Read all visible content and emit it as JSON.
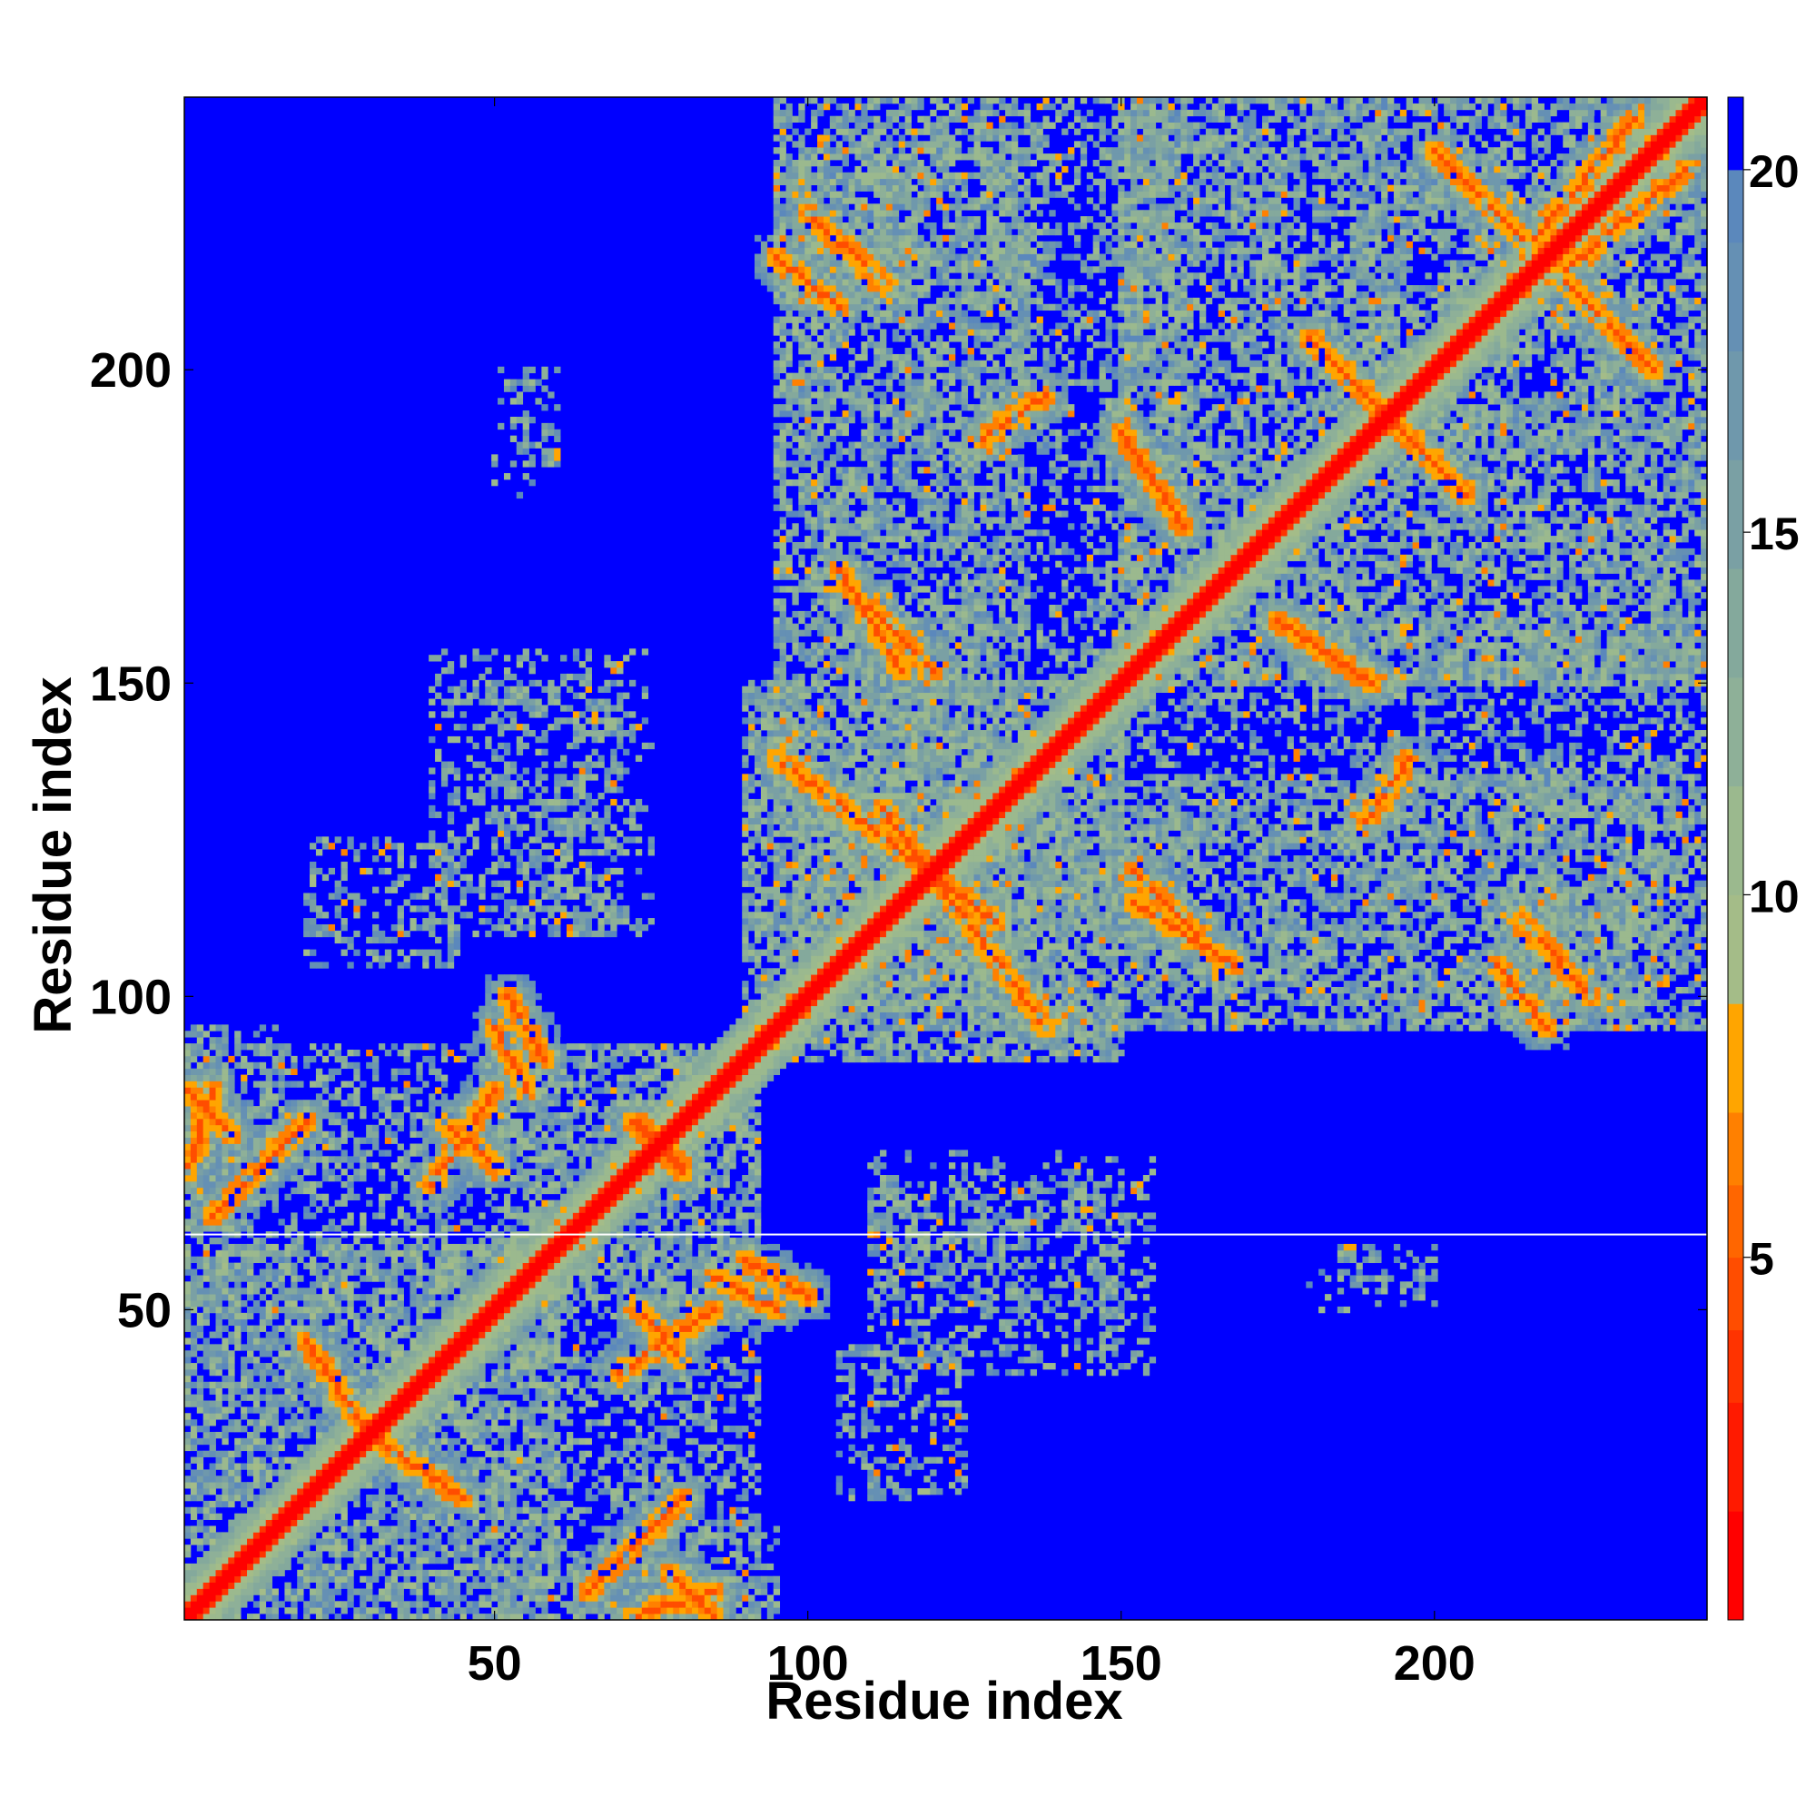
{
  "chart_data": {
    "type": "heatmap",
    "title": "",
    "xlabel": "Residue index",
    "ylabel": "Residue index",
    "n_residues": 243,
    "xlim": [
      0.5,
      243.5
    ],
    "ylim": [
      0.5,
      243.5
    ],
    "xticks": [
      50,
      100,
      150,
      200
    ],
    "yticks": [
      50,
      100,
      150,
      200
    ],
    "xtick_labels": [
      "50",
      "100",
      "150",
      "200"
    ],
    "ytick_labels": [
      "50",
      "100",
      "150",
      "200"
    ],
    "missing_row": 62,
    "colorbar": {
      "range": [
        0,
        21
      ],
      "ticks": [
        5,
        10,
        15,
        20
      ],
      "tick_labels": [
        "5",
        "10",
        "15",
        "20"
      ],
      "levels": [
        {
          "max": 1.5,
          "color": "#ff0000"
        },
        {
          "max": 3.0,
          "color": "#ff1a00"
        },
        {
          "max": 4.0,
          "color": "#ff3300"
        },
        {
          "max": 5.0,
          "color": "#ff4d00"
        },
        {
          "max": 6.0,
          "color": "#ff6600"
        },
        {
          "max": 7.0,
          "color": "#ff8000"
        },
        {
          "max": 8.5,
          "color": "#ffa500"
        },
        {
          "max": 10.0,
          "color": "#a4bc88"
        },
        {
          "max": 11.5,
          "color": "#9bb98e"
        },
        {
          "max": 13.0,
          "color": "#8eb098"
        },
        {
          "max": 14.5,
          "color": "#84a99c"
        },
        {
          "max": 16.0,
          "color": "#7aa0a4"
        },
        {
          "max": 17.5,
          "color": "#6f98ac"
        },
        {
          "max": 19.0,
          "color": "#6590b4"
        },
        {
          "max": 20.0,
          "color": "#5b88bc"
        },
        {
          "max": 21.0,
          "color": "#0000ff"
        }
      ]
    },
    "contact_regions": [
      {
        "i": [
          1,
          60
        ],
        "j": [
          1,
          60
        ],
        "kind": "block"
      },
      {
        "i": [
          50,
          92
        ],
        "j": [
          1,
          92
        ],
        "kind": "block"
      },
      {
        "i": [
          1,
          15
        ],
        "j": [
          70,
          95
        ],
        "kind": "block"
      },
      {
        "i": [
          90,
          150
        ],
        "j": [
          90,
          150
        ],
        "kind": "block"
      },
      {
        "i": [
          150,
          243
        ],
        "j": [
          150,
          243
        ],
        "kind": "block"
      },
      {
        "i": [
          95,
          160
        ],
        "j": [
          150,
          243
        ],
        "kind": "block"
      },
      {
        "i": [
          100,
          243
        ],
        "j": [
          95,
          135
        ],
        "kind": "block"
      },
      {
        "i": [
          40,
          75
        ],
        "j": [
          110,
          155
        ],
        "kind": "patch"
      },
      {
        "i": [
          110,
          150
        ],
        "j": [
          50,
          70
        ],
        "kind": "patch"
      },
      {
        "i": [
          180,
          200
        ],
        "j": [
          50,
          56
        ],
        "kind": "patch"
      },
      {
        "i": [
          105,
          125
        ],
        "j": [
          20,
          45
        ],
        "kind": "patch"
      },
      {
        "i": [
          55,
          60
        ],
        "j": [
          185,
          200
        ],
        "kind": "patch"
      },
      {
        "i": [
          210,
          235
        ],
        "j": [
          95,
          140
        ],
        "kind": "patch"
      }
    ],
    "strands": [
      {
        "i": [
          100,
          112
        ],
        "j": [
          225,
          214
        ],
        "min": 4.2
      },
      {
        "i": [
          95,
          130
        ],
        "j": [
          138,
          112
        ],
        "min": 4.5
      },
      {
        "i": [
          128,
          138
        ],
        "j": [
          189,
          196
        ],
        "min": 4.5
      },
      {
        "i": [
          110,
          120
        ],
        "j": [
          162,
          152
        ],
        "min": 4.2
      },
      {
        "i": [
          150,
          160
        ],
        "j": [
          190,
          175
        ],
        "min": 4.5
      },
      {
        "i": [
          175,
          190
        ],
        "j": [
          160,
          150
        ],
        "min": 4.3
      },
      {
        "i": [
          190,
          205
        ],
        "j": [
          195,
          180
        ],
        "min": 4.5
      },
      {
        "i": [
          200,
          215
        ],
        "j": [
          235,
          220
        ],
        "min": 4.4
      },
      {
        "i": [
          215,
          232
        ],
        "j": [
          220,
          240
        ],
        "min": 4.4
      },
      {
        "i": [
          210,
          218
        ],
        "j": [
          105,
          95
        ],
        "min": 4.5
      },
      {
        "i": [
          152,
          168
        ],
        "j": [
          115,
          105
        ],
        "min": 4.6
      },
      {
        "i": [
          5,
          20
        ],
        "j": [
          65,
          80
        ],
        "min": 4.2
      },
      {
        "i": [
          30,
          45
        ],
        "j": [
          30,
          20
        ],
        "min": 4.5
      },
      {
        "i": [
          42,
          50
        ],
        "j": [
          80,
          73
        ],
        "min": 4.5
      },
      {
        "i": [
          52,
          58
        ],
        "j": [
          100,
          90
        ],
        "min": 4.5
      },
      {
        "i": [
          72,
          80
        ],
        "j": [
          80,
          73
        ],
        "min": 4.4
      },
      {
        "i": [
          70,
          85
        ],
        "j": [
          40,
          50
        ],
        "min": 4.4
      },
      {
        "i": [
          85,
          95
        ],
        "j": [
          55,
          50
        ],
        "min": 4.5
      },
      {
        "i": [
          72,
          85
        ],
        "j": [
          1,
          5
        ],
        "min": 4.6
      },
      {
        "i": [
          1,
          8
        ],
        "j": [
          85,
          78
        ],
        "min": 4.4
      }
    ]
  }
}
